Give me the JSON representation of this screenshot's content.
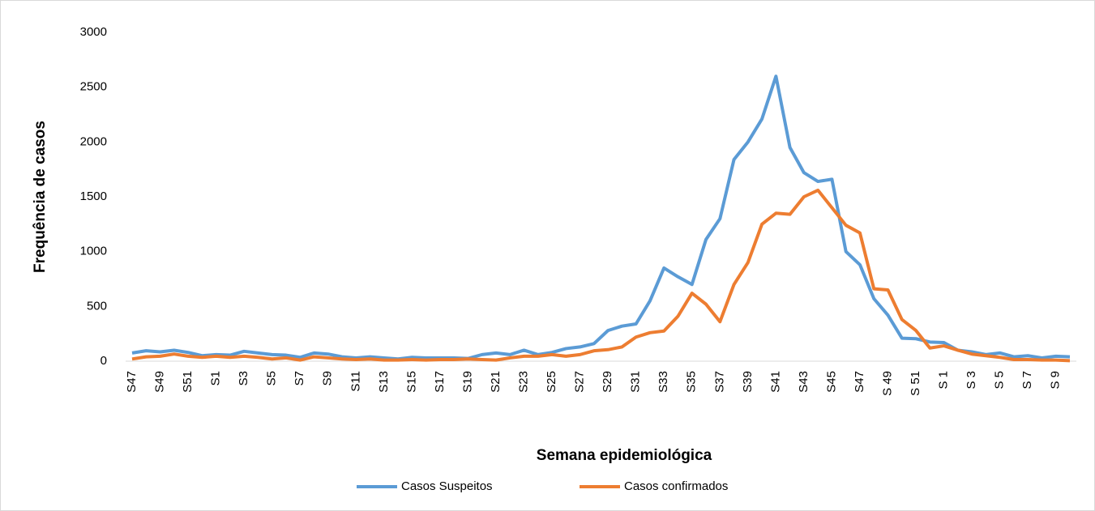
{
  "chart_data": {
    "type": "line",
    "y_label": "Frequência de casos",
    "x_label": "Semana epidemiológica",
    "categories": [
      "S47",
      null,
      "S49",
      null,
      "S51",
      null,
      "S1",
      null,
      "S3",
      null,
      "S5",
      null,
      "S7",
      null,
      "S9",
      null,
      "S11",
      null,
      "S13",
      null,
      "S15",
      null,
      "S17",
      null,
      "S19",
      null,
      "S21",
      null,
      "S23",
      null,
      "S25",
      null,
      "S27",
      null,
      "S29",
      null,
      "S31",
      null,
      "S33",
      null,
      "S35",
      null,
      "S37",
      null,
      "S39",
      null,
      "S41",
      null,
      "S43",
      null,
      "S45",
      null,
      "S47",
      null,
      "S 49",
      null,
      "S 51",
      null,
      "S 1",
      null,
      "S 3",
      null,
      "S 5",
      null,
      "S 7",
      null,
      "S 9",
      null
    ],
    "series": [
      {
        "name": "Casos Suspeitos",
        "color": "#5b9bd5",
        "values": [
          75,
          95,
          85,
          100,
          80,
          50,
          60,
          55,
          90,
          75,
          60,
          55,
          35,
          75,
          65,
          40,
          30,
          40,
          30,
          20,
          35,
          30,
          30,
          30,
          25,
          60,
          75,
          60,
          100,
          60,
          80,
          115,
          130,
          160,
          280,
          320,
          340,
          550,
          850,
          770,
          700,
          1110,
          1300,
          1840,
          2000,
          2210,
          2600,
          1950,
          1720,
          1640,
          1660,
          1000,
          880,
          570,
          420,
          210,
          205,
          175,
          170,
          100,
          85,
          60,
          75,
          40,
          50,
          30,
          45,
          40
        ]
      },
      {
        "name": "Casos confirmados",
        "color": "#ed7d31",
        "values": [
          20,
          40,
          45,
          65,
          45,
          35,
          45,
          35,
          45,
          35,
          20,
          30,
          10,
          40,
          30,
          20,
          15,
          20,
          10,
          10,
          15,
          10,
          15,
          15,
          20,
          15,
          10,
          30,
          45,
          45,
          60,
          45,
          60,
          95,
          105,
          130,
          220,
          260,
          275,
          410,
          620,
          520,
          360,
          700,
          900,
          1250,
          1350,
          1340,
          1500,
          1560,
          1400,
          1240,
          1170,
          660,
          650,
          380,
          280,
          120,
          140,
          100,
          65,
          50,
          35,
          15,
          15,
          10,
          10,
          5
        ]
      }
    ],
    "ylim": [
      0,
      3000
    ],
    "yticks": [
      0,
      500,
      1000,
      1500,
      2000,
      2500,
      3000
    ],
    "grid": false,
    "legend": "bottom"
  }
}
